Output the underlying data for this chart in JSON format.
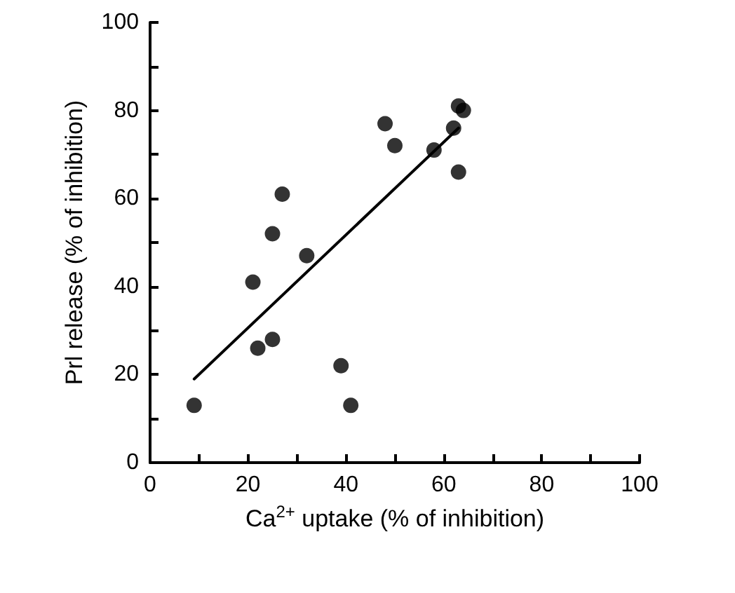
{
  "chart_data": {
    "type": "scatter",
    "xlabel": "Ca$^{2+}$ uptake (% of inhibition)",
    "ylabel": "Prl release (% of inhibition)",
    "xlim": [
      0,
      100
    ],
    "ylim": [
      0,
      100
    ],
    "xticks": [
      0,
      {
        "value": 10,
        "label": null
      },
      20,
      {
        "value": 30,
        "label": null
      },
      40,
      {
        "value": 50,
        "label": null
      },
      60,
      {
        "value": 70,
        "label": null
      },
      80,
      {
        "value": 90,
        "label": null
      },
      100
    ],
    "yticks": [
      0,
      {
        "value": 10,
        "label": null
      },
      20,
      {
        "value": 30,
        "label": null
      },
      40,
      {
        "value": 50,
        "label": null
      },
      60,
      {
        "value": 70,
        "label": null
      },
      80,
      {
        "value": 90,
        "label": null
      },
      100
    ],
    "grid": false,
    "marker": "circle",
    "series": [
      {
        "type": "scatter",
        "color": "#000000",
        "x": [
          9,
          21,
          22,
          25,
          25,
          27,
          32,
          39,
          41,
          48,
          50,
          58,
          62,
          63,
          63,
          64
        ],
        "values": [
          13,
          41,
          26,
          28,
          52,
          61,
          47,
          22,
          13,
          77,
          72,
          71,
          76,
          66,
          81,
          80
        ]
      },
      {
        "type": "line",
        "color": "#000000",
        "marker": "none",
        "line_style": "solid",
        "x": [
          9,
          63
        ],
        "values": [
          19,
          76
        ]
      }
    ]
  }
}
